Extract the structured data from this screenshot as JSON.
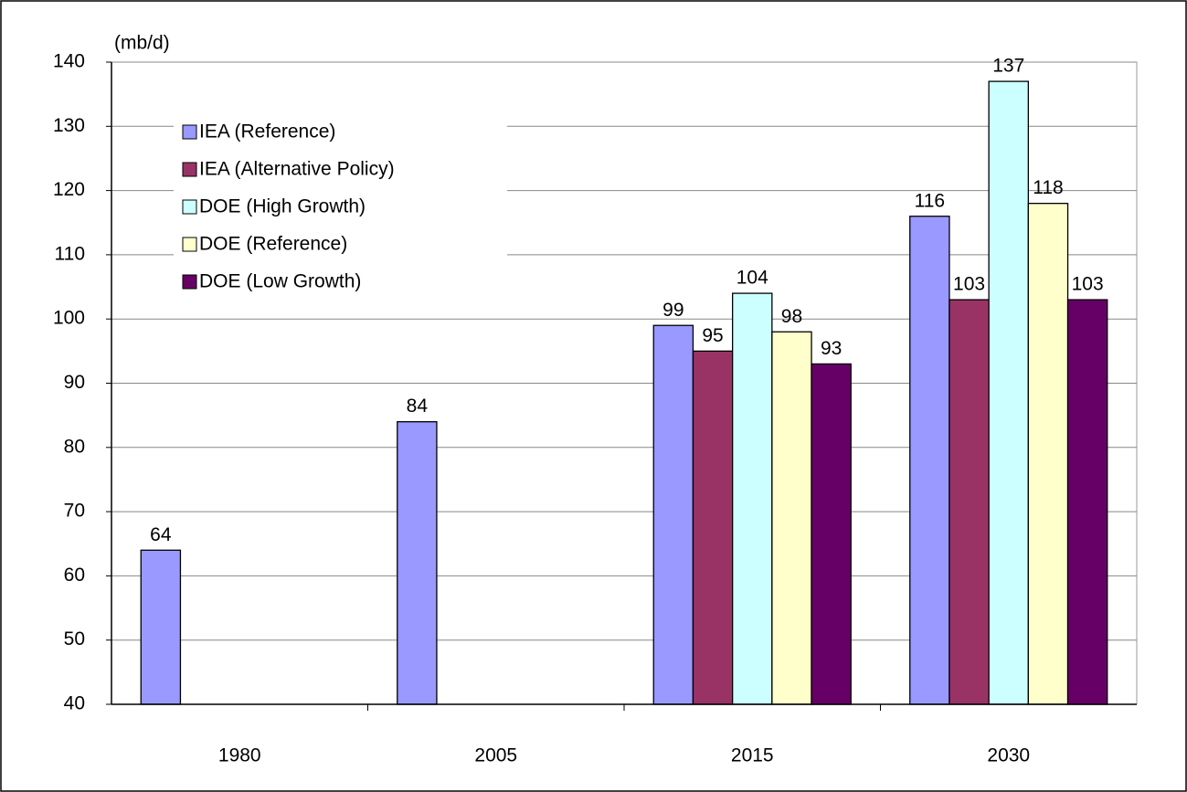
{
  "chart_data": {
    "type": "bar",
    "y_label": "(mb/d)",
    "categories": [
      "1980",
      "2005",
      "2015",
      "2030"
    ],
    "series": [
      {
        "name": "IEA (Reference)",
        "color": "#9999ff",
        "values": [
          64,
          84,
          99,
          116
        ]
      },
      {
        "name": "IEA (Alternative Policy)",
        "color": "#993366",
        "values": [
          null,
          null,
          95,
          103
        ]
      },
      {
        "name": "DOE (High Growth)",
        "color": "#ccffff",
        "values": [
          null,
          null,
          104,
          137
        ]
      },
      {
        "name": "DOE (Reference)",
        "color": "#ffffcc",
        "values": [
          null,
          null,
          98,
          118
        ]
      },
      {
        "name": "DOE (Low Growth)",
        "color": "#660066",
        "values": [
          null,
          null,
          93,
          103
        ]
      }
    ],
    "ylim": [
      40,
      140
    ],
    "yticks": [
      40,
      50,
      60,
      70,
      80,
      90,
      100,
      110,
      120,
      130,
      140
    ],
    "grid": true,
    "legend": "upper left"
  }
}
